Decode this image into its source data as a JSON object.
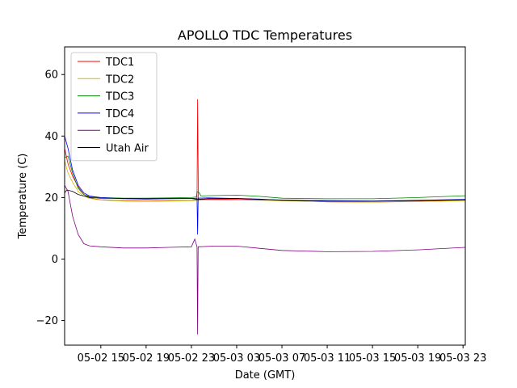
{
  "chart_data": {
    "type": "line",
    "title": "APOLLO TDC Temperatures",
    "xlabel": "Date (GMT)",
    "ylabel": "Temperature (C)",
    "xlim": [
      11.8,
      47.2
    ],
    "ylim": [
      -28,
      69
    ],
    "yticks": [
      -20,
      0,
      20,
      40,
      60
    ],
    "xticks": [
      {
        "value": 15,
        "label": "05-02 15"
      },
      {
        "value": 19,
        "label": "05-02 19"
      },
      {
        "value": 23,
        "label": "05-02 23"
      },
      {
        "value": 27,
        "label": "05-03 03"
      },
      {
        "value": 31,
        "label": "05-03 07"
      },
      {
        "value": 35,
        "label": "05-03 11"
      },
      {
        "value": 39,
        "label": "05-03 15"
      },
      {
        "value": 43,
        "label": "05-03 19"
      },
      {
        "value": 47,
        "label": "05-03 23"
      }
    ],
    "legend_position": "top-left",
    "series": [
      {
        "name": "TDC1",
        "color": "#ff0000",
        "points": [
          [
            11.8,
            36
          ],
          [
            12.1,
            31
          ],
          [
            12.5,
            27
          ],
          [
            13,
            23.5
          ],
          [
            13.5,
            21
          ],
          [
            14,
            20
          ],
          [
            14.5,
            19.5
          ],
          [
            15,
            19.3
          ],
          [
            17,
            19
          ],
          [
            19,
            18.9
          ],
          [
            21,
            19
          ],
          [
            23,
            19.1
          ],
          [
            23.5,
            19.2
          ],
          [
            23.55,
            52
          ],
          [
            23.62,
            19.3
          ],
          [
            24.5,
            19.5
          ],
          [
            27,
            19.4
          ],
          [
            31,
            19.1
          ],
          [
            35,
            18.6
          ],
          [
            39,
            18.5
          ],
          [
            43,
            18.8
          ],
          [
            45,
            19
          ],
          [
            47.2,
            19.2
          ]
        ]
      },
      {
        "name": "TDC2",
        "color": "#d4b800",
        "points": [
          [
            11.8,
            32
          ],
          [
            12.1,
            28
          ],
          [
            12.5,
            25
          ],
          [
            13,
            22
          ],
          [
            13.5,
            20.5
          ],
          [
            14,
            19.7
          ],
          [
            15,
            19.2
          ],
          [
            17,
            18.9
          ],
          [
            19,
            18.8
          ],
          [
            21,
            18.9
          ],
          [
            23,
            19
          ],
          [
            23.5,
            19.1
          ],
          [
            24.5,
            19.2
          ],
          [
            27,
            19.2
          ],
          [
            31,
            19
          ],
          [
            35,
            18.6
          ],
          [
            39,
            18.5
          ],
          [
            43,
            18.7
          ],
          [
            47.2,
            19
          ]
        ]
      },
      {
        "name": "TDC3",
        "color": "#008000",
        "points": [
          [
            11.8,
            33
          ],
          [
            12.1,
            33.5
          ],
          [
            12.5,
            28
          ],
          [
            13,
            23
          ],
          [
            13.5,
            21
          ],
          [
            14,
            20.3
          ],
          [
            15,
            20
          ],
          [
            17,
            19.8
          ],
          [
            19,
            19.8
          ],
          [
            21,
            19.9
          ],
          [
            23,
            20
          ],
          [
            23.45,
            20.2
          ],
          [
            23.5,
            22
          ],
          [
            23.7,
            21.5
          ],
          [
            23.85,
            20.5
          ],
          [
            24.5,
            20.6
          ],
          [
            27,
            20.8
          ],
          [
            29,
            20.4
          ],
          [
            31,
            19.8
          ],
          [
            35,
            19.6
          ],
          [
            39,
            19.6
          ],
          [
            43,
            20
          ],
          [
            47.2,
            20.6
          ]
        ]
      },
      {
        "name": "TDC4",
        "color": "#0000ff",
        "points": [
          [
            11.8,
            40
          ],
          [
            12.1,
            36
          ],
          [
            12.5,
            29
          ],
          [
            13,
            24
          ],
          [
            13.5,
            21.5
          ],
          [
            14,
            20.5
          ],
          [
            15,
            20
          ],
          [
            17,
            19.6
          ],
          [
            19,
            19.5
          ],
          [
            21,
            19.6
          ],
          [
            23,
            19.7
          ],
          [
            23.5,
            19.8
          ],
          [
            23.55,
            8
          ],
          [
            23.6,
            19.8
          ],
          [
            24.5,
            19.9
          ],
          [
            27,
            19.7
          ],
          [
            29,
            19.4
          ],
          [
            31,
            19.2
          ],
          [
            35,
            19
          ],
          [
            39,
            18.9
          ],
          [
            43,
            19.1
          ],
          [
            47.2,
            19.4
          ]
        ]
      },
      {
        "name": "TDC5",
        "color": "#800080",
        "points": [
          [
            11.8,
            24
          ],
          [
            12.1,
            22
          ],
          [
            12.5,
            14
          ],
          [
            13,
            8
          ],
          [
            13.5,
            5
          ],
          [
            14,
            4.3
          ],
          [
            15,
            4
          ],
          [
            17,
            3.6
          ],
          [
            19,
            3.6
          ],
          [
            21,
            3.8
          ],
          [
            23,
            4
          ],
          [
            23.3,
            6.5
          ],
          [
            23.5,
            4
          ],
          [
            23.55,
            -24.5
          ],
          [
            23.6,
            4
          ],
          [
            25,
            4.2
          ],
          [
            27,
            4.2
          ],
          [
            29,
            3.5
          ],
          [
            31,
            2.8
          ],
          [
            35,
            2.4
          ],
          [
            39,
            2.5
          ],
          [
            43,
            3
          ],
          [
            47.2,
            3.8
          ]
        ]
      },
      {
        "name": "Utah Air",
        "color": "#000000",
        "points": [
          [
            11.8,
            21.5
          ],
          [
            12,
            22.5
          ],
          [
            12.5,
            22
          ],
          [
            13,
            21
          ],
          [
            14,
            20
          ],
          [
            15,
            19.8
          ],
          [
            17,
            19.7
          ],
          [
            19,
            19.6
          ],
          [
            21,
            19.7
          ],
          [
            23,
            19.7
          ],
          [
            23.5,
            19.4
          ],
          [
            24.5,
            19.6
          ],
          [
            27,
            19.7
          ],
          [
            29,
            19.5
          ],
          [
            31,
            19.1
          ],
          [
            35,
            18.8
          ],
          [
            39,
            18.8
          ],
          [
            43,
            19
          ],
          [
            47.2,
            19.3
          ]
        ]
      }
    ]
  }
}
